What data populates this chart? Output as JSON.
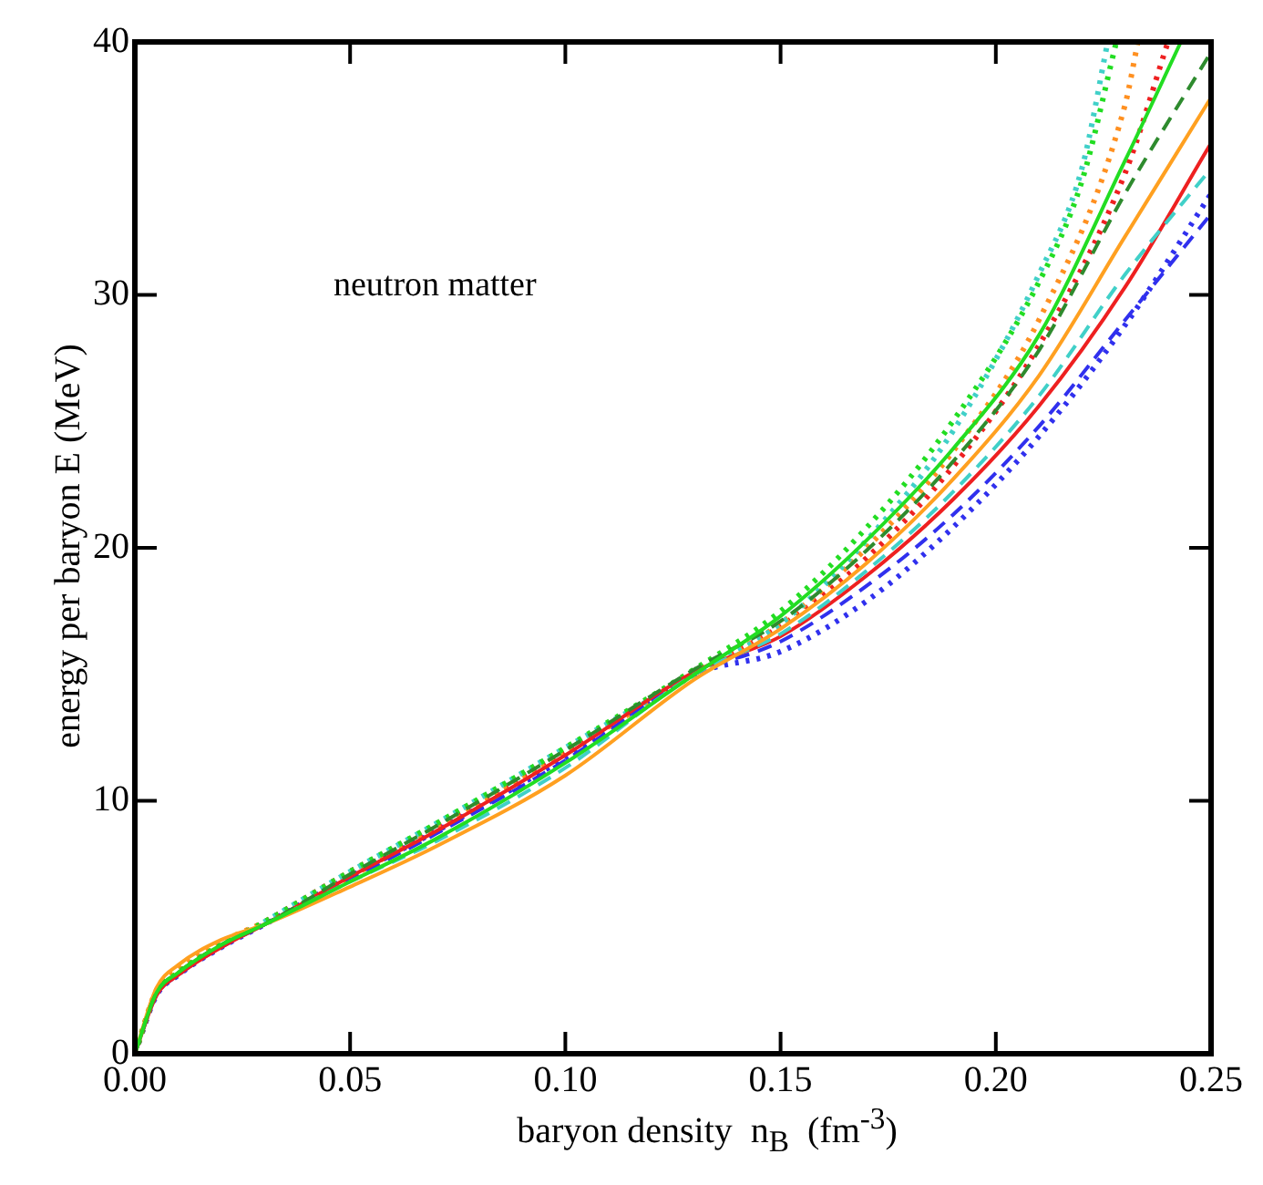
{
  "chart_data": {
    "type": "line",
    "xlabel": "baryon density  n$_{B}$  (fm$^{-3}$)",
    "ylabel": "energy per baryon   E   (MeV)",
    "annotations": [
      "neutron matter"
    ],
    "x": [
      0,
      0.005,
      0.01,
      0.02,
      0.03,
      0.05,
      0.07,
      0.1,
      0.13,
      0.15,
      0.17,
      0.19,
      0.21,
      0.23,
      0.25
    ],
    "xlim": [
      0,
      0.25
    ],
    "ylim": [
      0,
      40
    ],
    "xticks": [
      {
        "value": 0,
        "label": "0.00"
      },
      {
        "value": 0.05,
        "label": "0.05"
      },
      {
        "value": 0.1,
        "label": "0.10"
      },
      {
        "value": 0.15,
        "label": "0.15"
      },
      {
        "value": 0.2,
        "label": "0.20"
      },
      {
        "value": 0.25,
        "label": "0.25"
      }
    ],
    "yticks": [
      0,
      10,
      20,
      30,
      40
    ],
    "grid": false,
    "legend": false,
    "marker": "none",
    "series": [
      {
        "color": "#22dd22",
        "line_style": "solid",
        "x": [
          0,
          0.005,
          0.01,
          0.02,
          0.03,
          0.05,
          0.07,
          0.1,
          0.13,
          0.15,
          0.17,
          0.19,
          0.21,
          0.23,
          0.243
        ],
        "values": [
          0,
          2.4,
          3.2,
          4.3,
          5.1,
          6.8,
          8.5,
          11.5,
          15,
          17.3,
          20.3,
          23.9,
          28.4,
          35.3,
          40
        ]
      },
      {
        "color": "#2e8b2e",
        "line_style": "dashed",
        "values": [
          0,
          2.4,
          3.2,
          4.3,
          5.1,
          7.1,
          9,
          12,
          15.2,
          17.1,
          19.9,
          23.4,
          27.8,
          34,
          39.6
        ]
      },
      {
        "color": "#ffa020",
        "line_style": "solid",
        "values": [
          0,
          2.6,
          3.5,
          4.5,
          5.1,
          6.6,
          8.2,
          11,
          14.8,
          16.8,
          19.4,
          22.7,
          26.8,
          32.3,
          37.8
        ]
      },
      {
        "color": "#40d0c8",
        "line_style": "dashed",
        "x": [
          0.03,
          0.05,
          0.07,
          0.1,
          0.13,
          0.15,
          0.17,
          0.19,
          0.21,
          0.23,
          0.25
        ],
        "values": [
          5.1,
          6.8,
          8.4,
          11.3,
          15,
          16.6,
          19.1,
          22.2,
          26,
          30.8,
          35
        ]
      },
      {
        "color": "#ee2020",
        "line_style": "solid",
        "values": [
          0,
          2.3,
          3.1,
          4.2,
          5.1,
          7,
          8.8,
          11.8,
          15.1,
          16.5,
          18.9,
          21.9,
          25.6,
          30.3,
          36
        ]
      },
      {
        "color": "#3030ee",
        "line_style": "dashed",
        "values": [
          0,
          2.3,
          3.1,
          4.2,
          5.1,
          6.9,
          8.7,
          11.6,
          15,
          16.3,
          18.5,
          21.3,
          24.8,
          29,
          33.2
        ]
      },
      {
        "color": "#22dd22",
        "line_style": "dotted",
        "x": [
          0,
          0.005,
          0.01,
          0.02,
          0.03,
          0.05,
          0.07,
          0.1,
          0.13,
          0.15,
          0.17,
          0.19,
          0.21,
          0.22,
          0.228
        ],
        "values": [
          0,
          2.4,
          3.2,
          4.3,
          5.2,
          7.2,
          9.1,
          12.1,
          15.2,
          17.5,
          20.8,
          25,
          30.5,
          34.5,
          40
        ]
      },
      {
        "color": "#40d0c8",
        "line_style": "dotted",
        "x": [
          0.03,
          0.05,
          0.07,
          0.1,
          0.13,
          0.15,
          0.17,
          0.19,
          0.21,
          0.22,
          0.226
        ],
        "values": [
          5.2,
          7.2,
          9.1,
          12.1,
          15,
          17,
          20.3,
          24.6,
          30.8,
          35,
          40
        ]
      },
      {
        "color": "#ff9020",
        "line_style": "dotted",
        "x": [
          0,
          0.005,
          0.01,
          0.02,
          0.03,
          0.05,
          0.07,
          0.1,
          0.13,
          0.15,
          0.17,
          0.19,
          0.21,
          0.23,
          0.233
        ],
        "values": [
          0,
          2.5,
          3.3,
          4.4,
          5.2,
          7,
          8.9,
          11.9,
          15,
          17,
          20,
          23.8,
          29,
          37.5,
          40
        ]
      },
      {
        "color": "#ee2020",
        "line_style": "dotted",
        "x": [
          0,
          0.005,
          0.01,
          0.02,
          0.03,
          0.05,
          0.07,
          0.1,
          0.13,
          0.15,
          0.17,
          0.19,
          0.21,
          0.23,
          0.24
        ],
        "values": [
          0,
          2.4,
          3.2,
          4.3,
          5.2,
          7.2,
          9,
          12,
          15.1,
          16.9,
          19.6,
          23.2,
          28,
          34.8,
          40
        ]
      },
      {
        "color": "#3030ee",
        "line_style": "dotted",
        "values": [
          0,
          2.3,
          3.1,
          4.2,
          5.1,
          7,
          8.8,
          11.7,
          15,
          15.9,
          17.9,
          20.8,
          24.4,
          28.8,
          34
        ]
      }
    ]
  }
}
